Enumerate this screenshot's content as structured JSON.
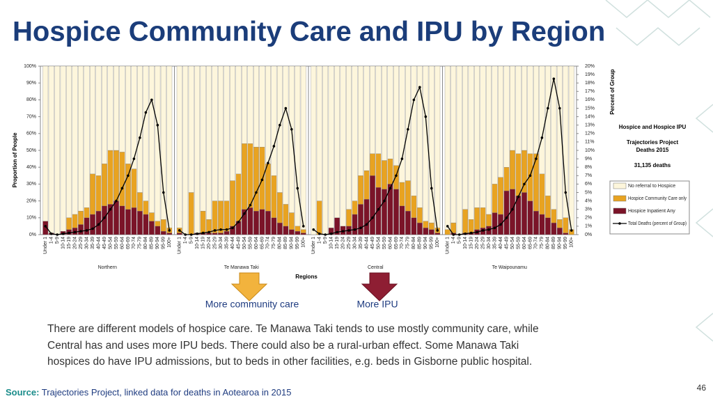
{
  "title": "Hospice Community Care and IPU by Region",
  "chart_data": {
    "type": "stacked_bar",
    "y_label": "Proportion of People",
    "y2_label": "Percent of Group",
    "x_label": "Regions",
    "ylim": [
      0,
      100
    ],
    "yticks": [
      {
        "value": 0,
        "label": "0%"
      },
      {
        "value": 10,
        "label": "10%"
      },
      {
        "value": 20,
        "label": "20%"
      },
      {
        "value": 30,
        "label": "30%"
      },
      {
        "value": 40,
        "label": "40%"
      },
      {
        "value": 50,
        "label": "50%"
      },
      {
        "value": 60,
        "label": "60%"
      },
      {
        "value": 70,
        "label": "70%"
      },
      {
        "value": 80,
        "label": "80%"
      },
      {
        "value": 90,
        "label": "90%"
      },
      {
        "value": 100,
        "label": "100%"
      }
    ],
    "y2lim": [
      0,
      20
    ],
    "y2ticks": [
      {
        "value": 0,
        "label": "0%"
      },
      {
        "value": 1,
        "label": "1%"
      },
      {
        "value": 2,
        "label": "2%"
      },
      {
        "value": 3,
        "label": "3%"
      },
      {
        "value": 4,
        "label": "4%"
      },
      {
        "value": 5,
        "label": "5%"
      },
      {
        "value": 6,
        "label": "6%"
      },
      {
        "value": 7,
        "label": "7%"
      },
      {
        "value": 8,
        "label": "8%"
      },
      {
        "value": 9,
        "label": "9%"
      },
      {
        "value": 10,
        "label": "10%"
      },
      {
        "value": 11,
        "label": "11%"
      },
      {
        "value": 12,
        "label": "12%"
      },
      {
        "value": 13,
        "label": "13%"
      },
      {
        "value": 14,
        "label": "14%"
      },
      {
        "value": 15,
        "label": "15%"
      },
      {
        "value": 16,
        "label": "16%"
      },
      {
        "value": 17,
        "label": "17%"
      },
      {
        "value": 18,
        "label": "18%"
      },
      {
        "value": 19,
        "label": "19%"
      },
      {
        "value": 20,
        "label": "20%"
      }
    ],
    "categories": [
      "Under 1",
      "1-4",
      "5-9",
      "10-14",
      "15-19",
      "20-24",
      "25-29",
      "30-34",
      "35-39",
      "40-44",
      "45-49",
      "50-54",
      "55-59",
      "60-64",
      "65-69",
      "70-74",
      "75-79",
      "80-84",
      "85-89",
      "90-94",
      "95-99",
      "100+"
    ],
    "series": [
      {
        "name": "Hospice Inpatient Any",
        "color": "#7b1428"
      },
      {
        "name": "Hospice Community Care only",
        "color": "#e8a321"
      },
      {
        "name": "No referral to Hospice",
        "color": "#fdf6dc"
      },
      {
        "name": "Total Deaths (percent of Group)",
        "color": "#000000",
        "type": "line",
        "axis": "y2"
      }
    ],
    "legend_title": "Hospice and Hospice IPU",
    "legend_subtitle": [
      "Trajectories Project",
      "Deaths 2015"
    ],
    "legend_count": "31,135 deaths",
    "panels": [
      {
        "name": "Northern",
        "values": [
          [
            8,
            1,
            0,
            2,
            3,
            4,
            6,
            10,
            12,
            14,
            17,
            18,
            20,
            17,
            15,
            16,
            14,
            12,
            8,
            5,
            2,
            1
          ],
          [
            0,
            0,
            0,
            0,
            7,
            8,
            8,
            6,
            24,
            21,
            25,
            32,
            30,
            32,
            27,
            23,
            11,
            8,
            5,
            3,
            7,
            3
          ],
          [
            92,
            99,
            100,
            98,
            90,
            88,
            86,
            84,
            64,
            65,
            58,
            50,
            50,
            51,
            58,
            61,
            75,
            80,
            87,
            92,
            91,
            96
          ],
          [
            1,
            0.1,
            0,
            0.1,
            0.2,
            0.3,
            0.4,
            0.5,
            0.7,
            1.2,
            2,
            3,
            4,
            5.5,
            7,
            9,
            11.5,
            14.5,
            16,
            13,
            5,
            0.5
          ]
        ]
      },
      {
        "name": "Te Manawa Taki",
        "values": [
          [
            1,
            0,
            0,
            1,
            1,
            1,
            1,
            1,
            2,
            5,
            8,
            15,
            16,
            14,
            15,
            14,
            10,
            7,
            5,
            3,
            2,
            1
          ],
          [
            3,
            0,
            25,
            0,
            13,
            8,
            19,
            19,
            18,
            27,
            28,
            39,
            38,
            38,
            37,
            28,
            25,
            18,
            13,
            10,
            3,
            2
          ],
          [
            96,
            100,
            75,
            99,
            86,
            91,
            80,
            80,
            80,
            68,
            64,
            46,
            46,
            48,
            48,
            58,
            65,
            75,
            82,
            87,
            95,
            97
          ],
          [
            0.5,
            0,
            0,
            0.1,
            0.2,
            0.3,
            0.5,
            0.6,
            0.6,
            0.8,
            1.5,
            2.5,
            3.5,
            5,
            6.5,
            8.5,
            10.5,
            13,
            15,
            12.5,
            5.5,
            1
          ]
        ]
      },
      {
        "name": "Central",
        "values": [
          [
            0,
            0,
            0,
            4,
            10,
            5,
            5,
            12,
            18,
            21,
            35,
            28,
            27,
            30,
            27,
            17,
            14,
            10,
            7,
            4,
            3,
            1
          ],
          [
            0,
            20,
            0,
            0,
            0,
            0,
            10,
            8,
            17,
            17,
            13,
            20,
            17,
            15,
            14,
            14,
            18,
            13,
            9,
            4,
            4,
            3
          ],
          [
            100,
            80,
            100,
            96,
            90,
            95,
            85,
            80,
            65,
            62,
            52,
            52,
            56,
            55,
            59,
            69,
            68,
            77,
            84,
            92,
            93,
            96
          ],
          [
            0.6,
            0.1,
            0,
            0.1,
            0.3,
            0.4,
            0.5,
            0.6,
            0.8,
            1.2,
            2,
            3,
            4,
            5.5,
            7,
            9,
            12.5,
            16,
            17.5,
            14,
            5.5,
            0.5
          ]
        ]
      },
      {
        "name": "Te Waipounamu",
        "values": [
          [
            0,
            1,
            0,
            1,
            1,
            3,
            4,
            5,
            13,
            12,
            26,
            27,
            23,
            25,
            20,
            14,
            12,
            10,
            7,
            4,
            1,
            0
          ],
          [
            3,
            6,
            0,
            14,
            8,
            13,
            12,
            7,
            17,
            22,
            14,
            23,
            25,
            25,
            28,
            34,
            24,
            13,
            8,
            5,
            9,
            3
          ],
          [
            97,
            93,
            100,
            85,
            91,
            84,
            84,
            88,
            70,
            66,
            60,
            50,
            52,
            50,
            52,
            52,
            64,
            77,
            85,
            91,
            90,
            97
          ],
          [
            1,
            0,
            0,
            0.1,
            0.2,
            0.3,
            0.5,
            0.6,
            0.8,
            1.2,
            2,
            3,
            4.5,
            6,
            7,
            9,
            11.5,
            15,
            18.5,
            15,
            5,
            0.5
          ]
        ]
      }
    ]
  },
  "annotations": [
    "More community care",
    "More IPU"
  ],
  "body": [
    "There are different models of hospice care. Te Manawa Taki tends to use mostly community care, while",
    "Central has and uses more IPU beds. There could also be a rural-urban effect. Some Manawa Taki",
    "hospices do have IPU admissions, but to beds in other facilities, e.g. beds in Gisborne public hospital."
  ],
  "source": {
    "label": "Source:",
    "text": "Trajectories Project, linked data for deaths in Aotearoa in 2015"
  },
  "page_number": "46"
}
